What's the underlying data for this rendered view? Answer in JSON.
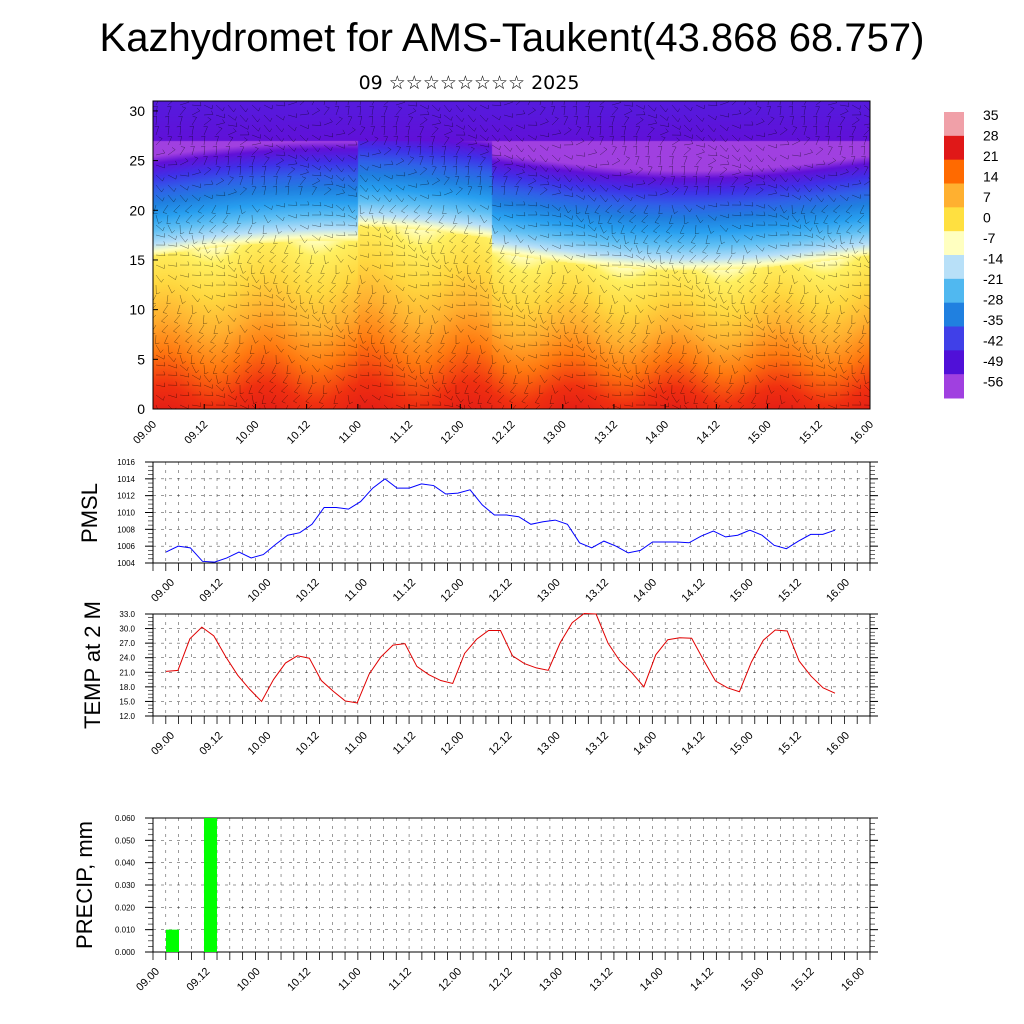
{
  "title": "Kazhydromet for AMS-Taukent(43.868 68.757)",
  "subtitle": "09 ☆☆☆☆☆☆☆☆ 2025",
  "time_ticks": [
    "09.00",
    "09.12",
    "10.00",
    "10.12",
    "11.00",
    "11.12",
    "12.00",
    "12.12",
    "13.00",
    "13.12",
    "14.00",
    "14.12",
    "15.00",
    "15.12",
    "16.00"
  ],
  "chart_data": [
    {
      "type": "heatmap",
      "description_of_axes": "time vs vertical level with wind barbs overlay",
      "y_ticks": [
        "0",
        "5",
        "10",
        "15",
        "20",
        "25",
        "30"
      ],
      "ylim": [
        0,
        31
      ],
      "x": [
        "09.00",
        "09.12",
        "10.00",
        "10.12",
        "11.00",
        "11.12",
        "12.00",
        "12.12",
        "13.00",
        "13.12",
        "14.00",
        "14.12",
        "15.00",
        "15.12",
        "16.00"
      ],
      "colorbar_labels": [
        "35",
        "28",
        "21",
        "14",
        "7",
        "0",
        "-7",
        "-14",
        "-21",
        "-28",
        "-35",
        "-42",
        "-49",
        "-56"
      ],
      "colorbar_range": [
        -60,
        38
      ],
      "colorbar_colors": [
        "#f0a0a8",
        "#e01818",
        "#ff6a00",
        "#ffb030",
        "#ffe040",
        "#ffffc0",
        "#b8e0f8",
        "#50b8f0",
        "#2080e0",
        "#4040e8",
        "#5010d8",
        "#a040e0"
      ]
    },
    {
      "type": "line",
      "ylabel": "PMSL",
      "ylim": [
        1004,
        1016
      ],
      "y_ticks": [
        "1004",
        "1006",
        "1008",
        "1010",
        "1012",
        "1014",
        "1016"
      ],
      "line_color": "#0000ff",
      "series": [
        {
          "values": [
            1005.3,
            1006.0,
            1005.8,
            1004.2,
            1004.1,
            1004.6,
            1005.3,
            1004.6,
            1005.0,
            1006.2,
            1007.3,
            1007.6,
            1008.6,
            1010.6,
            1010.6,
            1010.4,
            1011.3,
            1012.9,
            1014.0,
            1012.9,
            1012.9,
            1013.4,
            1013.2,
            1012.2,
            1012.3,
            1012.7,
            1010.9,
            1009.7,
            1009.7,
            1009.5,
            1008.6,
            1008.9,
            1009.1,
            1008.6,
            1006.4,
            1005.8,
            1006.6,
            1006.0,
            1005.2,
            1005.5,
            1006.5,
            1006.5,
            1006.5,
            1006.4,
            1007.2,
            1007.8,
            1007.1,
            1007.3,
            1007.9,
            1007.3,
            1006.1,
            1005.7,
            1006.6,
            1007.4,
            1007.4,
            1007.9
          ]
        }
      ]
    },
    {
      "type": "line",
      "ylabel": "TEMP at 2 M",
      "ylim": [
        12,
        33
      ],
      "y_ticks": [
        "12.0",
        "15.0",
        "18.0",
        "21.0",
        "24.0",
        "27.0",
        "30.0",
        "33.0"
      ],
      "line_color": "#e00000",
      "series": [
        {
          "values": [
            21.2,
            21.4,
            27.9,
            30.3,
            28.5,
            24.2,
            20.4,
            17.5,
            15.0,
            19.5,
            22.9,
            24.4,
            23.9,
            19.3,
            17.1,
            15.1,
            14.7,
            20.6,
            24.2,
            26.6,
            26.9,
            22.2,
            20.5,
            19.3,
            18.7,
            24.9,
            27.8,
            29.6,
            29.6,
            24.4,
            22.8,
            21.9,
            21.4,
            27.1,
            31.2,
            33.1,
            33.0,
            27.0,
            23.3,
            20.9,
            18.0,
            24.6,
            27.7,
            28.1,
            28.0,
            23.5,
            19.2,
            17.8,
            17.0,
            23.1,
            27.6,
            29.7,
            29.5,
            23.3,
            20.2,
            17.8,
            16.7
          ]
        }
      ]
    },
    {
      "type": "bar",
      "ylabel": "PRECIP, mm",
      "ylim": [
        0,
        0.06
      ],
      "y_ticks": [
        "0.000",
        "0.010",
        "0.020",
        "0.030",
        "0.040",
        "0.050",
        "0.060"
      ],
      "bar_color": "#00ff00",
      "bars": [
        {
          "x": "09.03",
          "value": 0.01
        },
        {
          "x": "09.09",
          "value": 0.06
        }
      ]
    }
  ]
}
